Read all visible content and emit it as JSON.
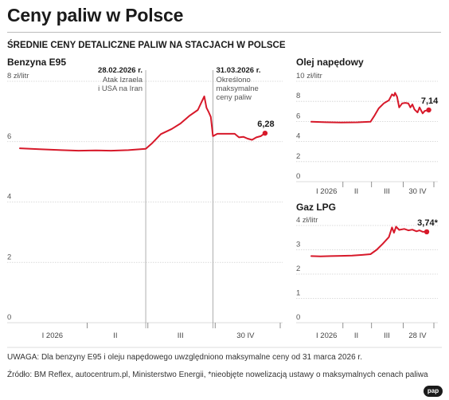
{
  "header": {
    "title": "Ceny paliw w Polsce",
    "subtitle": "ŚREDNIE CENY DETALICZNE PALIW NA STACJACH W POLSCE"
  },
  "footer": {
    "note": "UWAGA: Dla benzyny E95 i oleju napędowego uwzględniono maksymalne ceny od 31 marca 2026 r.",
    "source": "Źródło: BM Reflex, autocentrum.pl, Ministerstwo Energii, *nieobjęte nowelizacją ustawy o maksymalnych cenach paliwa",
    "logo": "pap"
  },
  "colors": {
    "series": "#d7192a",
    "grid": "#cfcfcf",
    "marker_line": "#9a9a9a"
  },
  "chart_data": [
    {
      "type": "line",
      "title": "Benzyna E95",
      "unit": "zł/litr",
      "ylim": [
        0,
        8
      ],
      "yticks": [
        0,
        2,
        4,
        6,
        8
      ],
      "ytick_labels": [
        "0",
        "2",
        "4",
        "6",
        "8 zł/litr"
      ],
      "x_domain": [
        "2026-01-01",
        "2026-05-01"
      ],
      "xtick_labels": [
        {
          "label": "I 2026",
          "at": "2026-01-16"
        },
        {
          "label": "II",
          "at": "2026-02-14"
        },
        {
          "label": "III",
          "at": "2026-03-16"
        },
        {
          "label": "30 IV",
          "at": "2026-04-15"
        }
      ],
      "month_ticks": [
        "2026-02-01",
        "2026-03-01",
        "2026-04-01",
        "2026-05-01"
      ],
      "grid": true,
      "annotations": [
        {
          "date": "2026-02-28",
          "label": "28.02.2026 r.",
          "lines": [
            "Atak Izraela",
            "i USA na Iran"
          ]
        },
        {
          "date": "2026-03-31",
          "label": "31.03.2026 r.",
          "lines": [
            "Określono",
            "maksymalne",
            "ceny paliw"
          ]
        }
      ],
      "last_label": "6,28",
      "series": [
        {
          "points": [
            [
              "2026-01-01",
              5.78
            ],
            [
              "2026-01-10",
              5.75
            ],
            [
              "2026-01-20",
              5.72
            ],
            [
              "2026-01-28",
              5.7
            ],
            [
              "2026-02-05",
              5.71
            ],
            [
              "2026-02-12",
              5.7
            ],
            [
              "2026-02-20",
              5.72
            ],
            [
              "2026-02-28",
              5.76
            ],
            [
              "2026-03-03",
              5.95
            ],
            [
              "2026-03-07",
              6.25
            ],
            [
              "2026-03-12",
              6.42
            ],
            [
              "2026-03-16",
              6.6
            ],
            [
              "2026-03-20",
              6.85
            ],
            [
              "2026-03-24",
              7.05
            ],
            [
              "2026-03-26",
              7.35
            ],
            [
              "2026-03-27",
              7.5
            ],
            [
              "2026-03-28",
              7.12
            ],
            [
              "2026-03-29",
              6.98
            ],
            [
              "2026-03-30",
              6.82
            ],
            [
              "2026-03-31",
              6.18
            ],
            [
              "2026-04-02",
              6.26
            ],
            [
              "2026-04-05",
              6.26
            ],
            [
              "2026-04-08",
              6.26
            ],
            [
              "2026-04-10",
              6.26
            ],
            [
              "2026-04-12",
              6.14
            ],
            [
              "2026-04-14",
              6.16
            ],
            [
              "2026-04-16",
              6.1
            ],
            [
              "2026-04-18",
              6.06
            ],
            [
              "2026-04-20",
              6.14
            ],
            [
              "2026-04-22",
              6.18
            ],
            [
              "2026-04-24",
              6.28
            ]
          ]
        }
      ]
    },
    {
      "type": "line",
      "title": "Olej napędowy",
      "unit": "zł/litr",
      "ylim": [
        0,
        10
      ],
      "yticks": [
        0,
        2,
        4,
        6,
        8,
        10
      ],
      "ytick_labels": [
        "0",
        "2",
        "4",
        "6",
        "8",
        "10 zł/litr"
      ],
      "x_domain": [
        "2026-01-01",
        "2026-05-01"
      ],
      "xtick_labels": [
        {
          "label": "I 2026",
          "at": "2026-01-16"
        },
        {
          "label": "II",
          "at": "2026-02-14"
        },
        {
          "label": "III",
          "at": "2026-03-16"
        },
        {
          "label": "30 IV",
          "at": "2026-04-15"
        }
      ],
      "month_ticks": [
        "2026-02-01",
        "2026-03-01",
        "2026-04-01",
        "2026-05-01"
      ],
      "grid": true,
      "last_label": "7,14",
      "series": [
        {
          "points": [
            [
              "2026-01-01",
              5.97
            ],
            [
              "2026-01-15",
              5.92
            ],
            [
              "2026-01-30",
              5.9
            ],
            [
              "2026-02-15",
              5.91
            ],
            [
              "2026-02-28",
              5.97
            ],
            [
              "2026-03-04",
              6.6
            ],
            [
              "2026-03-08",
              7.3
            ],
            [
              "2026-03-13",
              7.8
            ],
            [
              "2026-03-18",
              8.1
            ],
            [
              "2026-03-21",
              8.7
            ],
            [
              "2026-03-23",
              8.55
            ],
            [
              "2026-03-24",
              8.85
            ],
            [
              "2026-03-26",
              8.45
            ],
            [
              "2026-03-28",
              7.4
            ],
            [
              "2026-03-31",
              7.8
            ],
            [
              "2026-04-03",
              7.85
            ],
            [
              "2026-04-06",
              7.8
            ],
            [
              "2026-04-08",
              7.4
            ],
            [
              "2026-04-10",
              7.7
            ],
            [
              "2026-04-12",
              7.2
            ],
            [
              "2026-04-15",
              6.9
            ],
            [
              "2026-04-17",
              7.4
            ],
            [
              "2026-04-20",
              6.8
            ],
            [
              "2026-04-22",
              7.05
            ],
            [
              "2026-04-26",
              7.14
            ]
          ]
        }
      ]
    },
    {
      "type": "line",
      "title": "Gaz LPG",
      "unit": "zł/litr",
      "ylim": [
        0,
        4
      ],
      "yticks": [
        0,
        1,
        2,
        3,
        4
      ],
      "ytick_labels": [
        "0",
        "1",
        "2",
        "3",
        "4 zł/litr"
      ],
      "x_domain": [
        "2026-01-01",
        "2026-05-01"
      ],
      "xtick_labels": [
        {
          "label": "I 2026",
          "at": "2026-01-16"
        },
        {
          "label": "II",
          "at": "2026-02-14"
        },
        {
          "label": "III",
          "at": "2026-03-16"
        },
        {
          "label": "28 IV",
          "at": "2026-04-15"
        }
      ],
      "month_ticks": [
        "2026-02-01",
        "2026-03-01",
        "2026-04-01",
        "2026-05-01"
      ],
      "grid": true,
      "last_label": "3,74*",
      "series": [
        {
          "points": [
            [
              "2026-01-01",
              2.74
            ],
            [
              "2026-01-10",
              2.73
            ],
            [
              "2026-01-20",
              2.74
            ],
            [
              "2026-01-30",
              2.75
            ],
            [
              "2026-02-10",
              2.76
            ],
            [
              "2026-02-20",
              2.79
            ],
            [
              "2026-02-28",
              2.82
            ],
            [
              "2026-03-06",
              3.0
            ],
            [
              "2026-03-12",
              3.25
            ],
            [
              "2026-03-18",
              3.52
            ],
            [
              "2026-03-21",
              3.92
            ],
            [
              "2026-03-23",
              3.7
            ],
            [
              "2026-03-25",
              3.95
            ],
            [
              "2026-03-28",
              3.82
            ],
            [
              "2026-04-02",
              3.86
            ],
            [
              "2026-04-06",
              3.8
            ],
            [
              "2026-04-10",
              3.83
            ],
            [
              "2026-04-14",
              3.76
            ],
            [
              "2026-04-17",
              3.8
            ],
            [
              "2026-04-20",
              3.74
            ],
            [
              "2026-04-24",
              3.74
            ]
          ]
        }
      ]
    }
  ]
}
